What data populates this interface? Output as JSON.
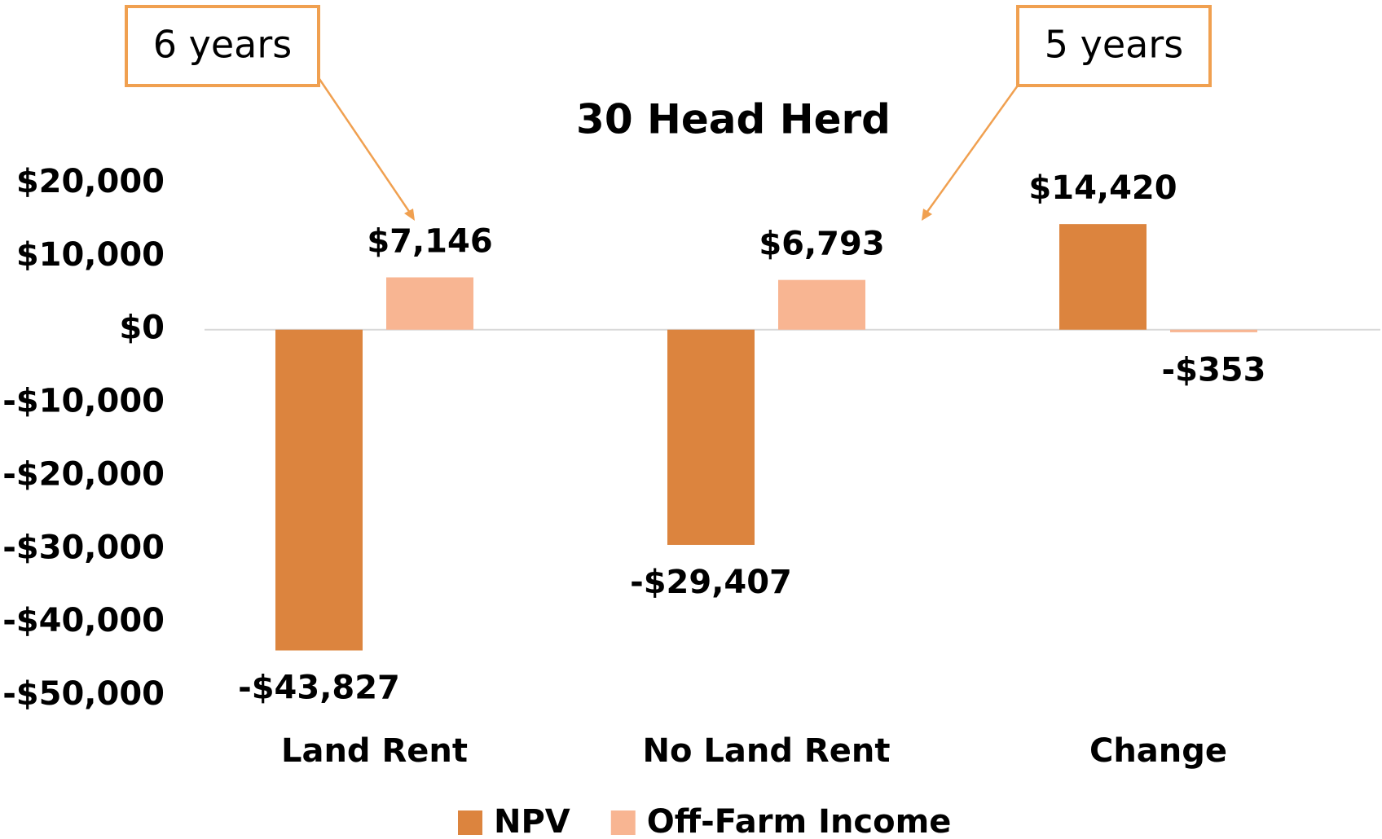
{
  "chart_data": {
    "type": "bar",
    "title": "30 Head Herd",
    "categories": [
      "Land Rent",
      "No Land Rent",
      "Change"
    ],
    "series": [
      {
        "name": "NPV",
        "color": "#dc843e",
        "values": [
          -43827,
          -29407,
          14420
        ],
        "value_labels": [
          "-$43,827",
          "-$29,407",
          "$14,420"
        ]
      },
      {
        "name": "Off-Farm Income",
        "color": "#f8b592",
        "values": [
          7146,
          6793,
          -353
        ],
        "value_labels": [
          "$7,146",
          "$6,793",
          "-$353"
        ]
      }
    ],
    "ylim": [
      -50000,
      20000
    ],
    "yticks": [
      {
        "value": -50000,
        "label": "-$50,000"
      },
      {
        "value": -40000,
        "label": "-$40,000"
      },
      {
        "value": -30000,
        "label": "-$30,000"
      },
      {
        "value": -20000,
        "label": "-$20,000"
      },
      {
        "value": -10000,
        "label": "-$10,000"
      },
      {
        "value": 0,
        "label": "$0"
      },
      {
        "value": 10000,
        "label": "$10,000"
      },
      {
        "value": 20000,
        "label": "$20,000"
      }
    ],
    "grid": false,
    "legend": "bottom",
    "annotations": [
      {
        "text": "6 years"
      },
      {
        "text": "5 years"
      }
    ]
  }
}
